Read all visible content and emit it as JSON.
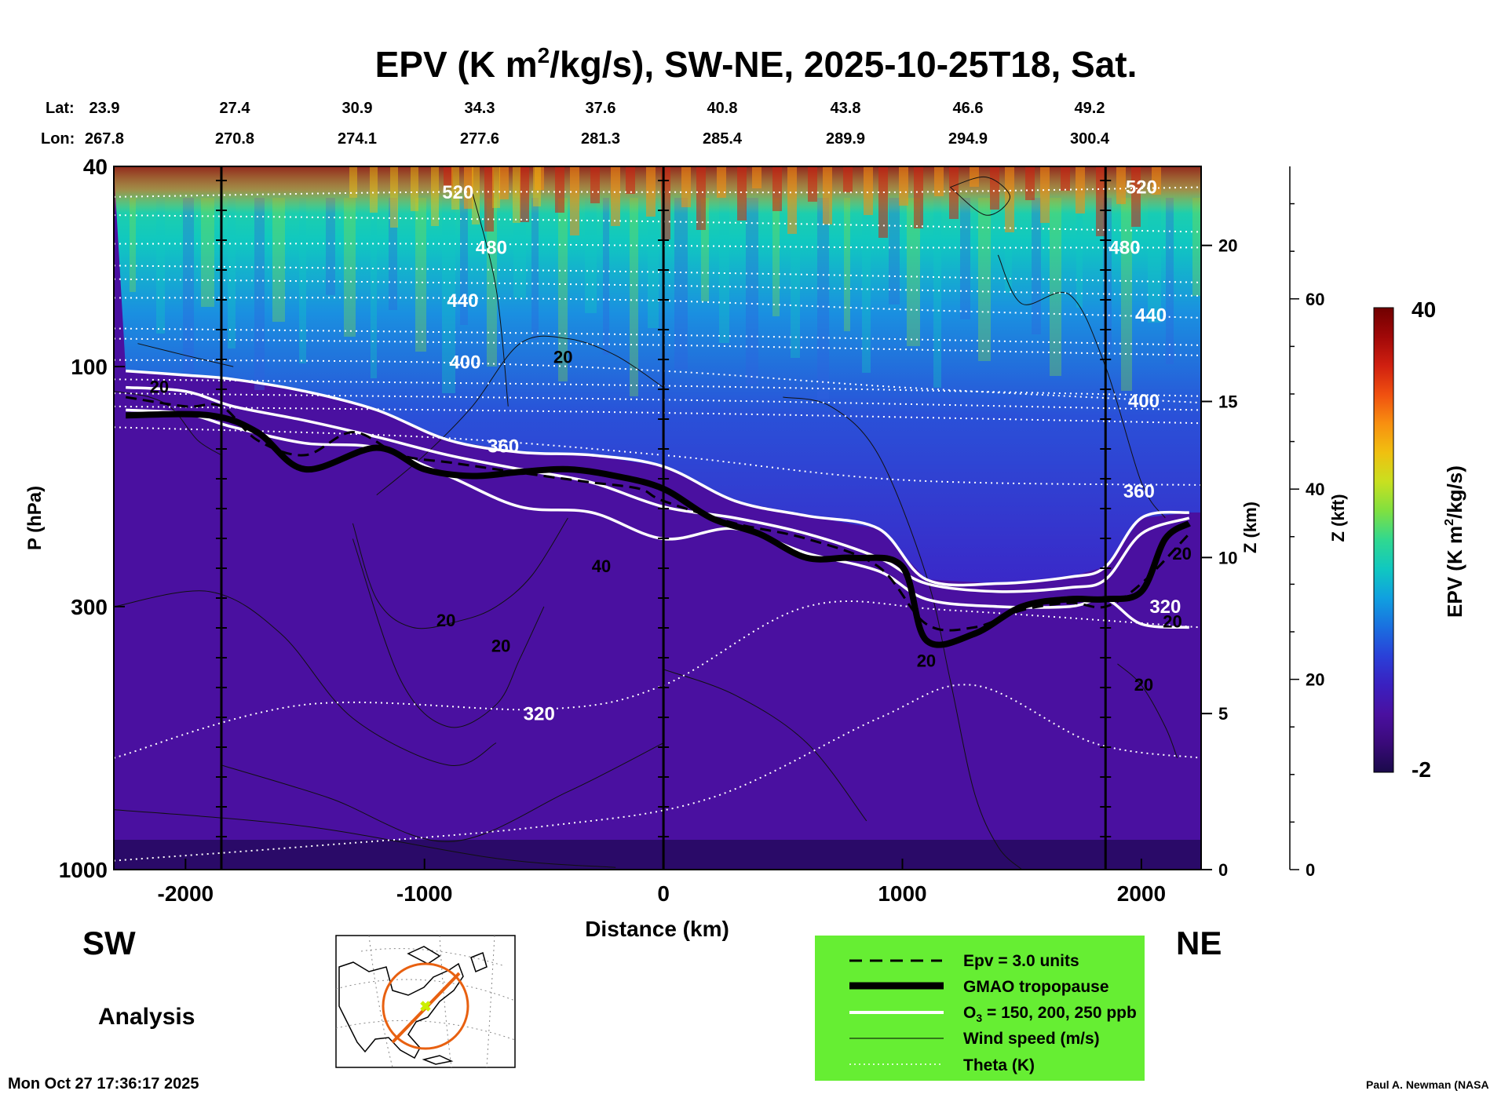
{
  "title": {
    "prefix": "EPV (K m",
    "sup": "2",
    "suffix": "/kg/s), SW-NE, 2025-10-25T18, Sat."
  },
  "lat_row": {
    "label": "Lat:",
    "values": [
      "23.9",
      "27.4",
      "30.9",
      "34.3",
      "37.6",
      "40.8",
      "43.8",
      "46.6",
      "49.2"
    ]
  },
  "lon_row": {
    "label": "Lon:",
    "values": [
      "267.8",
      "270.8",
      "274.1",
      "277.6",
      "281.3",
      "285.4",
      "289.9",
      "294.9",
      "300.4"
    ]
  },
  "sw_label": "SW",
  "ne_label": "NE",
  "analysis_label": "Analysis",
  "timestamp": "Mon Oct 27 17:36:17 2025",
  "credit": "Paul A. Newman (NASA",
  "legend": {
    "bg_color": "#66ee33",
    "items": [
      {
        "style": "dashed",
        "label": "Epv = 3.0 units"
      },
      {
        "style": "thick",
        "label": "GMAO tropopause"
      },
      {
        "style": "white",
        "label_prefix": "O",
        "label_sub": "3",
        "label_suffix": " = 150, 200, 250 ppb"
      },
      {
        "style": "thin",
        "label": "Wind speed (m/s)"
      },
      {
        "style": "dotted",
        "label": "Theta (K)"
      }
    ]
  },
  "colorbar": {
    "max_label": "40",
    "min_label": "-2",
    "title_prefix": "EPV (K m",
    "title_sup": "2",
    "title_suffix": "/kg/s)",
    "colors": [
      "#1a0a4a",
      "#3a0a7a",
      "#4a10a0",
      "#3a20c0",
      "#2a40d8",
      "#1a70e0",
      "#10a0e0",
      "#10c8c0",
      "#30d890",
      "#80e040",
      "#c8e020",
      "#f0c010",
      "#f89010",
      "#f05010",
      "#d02010",
      "#a00808",
      "#700000"
    ]
  },
  "chart_data": {
    "type": "heatmap",
    "xlabel": "Distance (km)",
    "ylabel": "P (hPa)",
    "xlim": [
      -2300,
      2250
    ],
    "ylim": [
      1000,
      40
    ],
    "y_scale": "log",
    "x_ticks": [
      -2000,
      -1000,
      0,
      1000,
      2000
    ],
    "y_ticks": [
      40,
      100,
      300,
      1000
    ],
    "z_axis": {
      "label": "Z (km)",
      "ticks": [
        0,
        5,
        10,
        15,
        20
      ]
    },
    "kft_axis": {
      "label": "Z (kft)",
      "ticks": [
        0,
        20,
        40,
        60
      ]
    },
    "vertical_markers": [
      -1850,
      0,
      1850
    ],
    "colorbar_range": [
      -2,
      40
    ],
    "theta_levels": [
      {
        "label": "520",
        "at": [
          {
            "x": -860,
            "p": 45
          },
          {
            "x": 2000,
            "p": 44
          }
        ]
      },
      {
        "label": "480",
        "at": [
          {
            "x": -720,
            "p": 58
          },
          {
            "x": 1930,
            "p": 58
          }
        ]
      },
      {
        "label": "440",
        "at": [
          {
            "x": -840,
            "p": 74
          },
          {
            "x": 2040,
            "p": 79
          }
        ]
      },
      {
        "label": "400",
        "at": [
          {
            "x": -830,
            "p": 98
          },
          {
            "x": 2010,
            "p": 117
          }
        ]
      },
      {
        "label": "360",
        "at": [
          {
            "x": -670,
            "p": 144
          },
          {
            "x": 1990,
            "p": 177
          }
        ]
      },
      {
        "label": "320",
        "at": [
          {
            "x": -520,
            "p": 490
          },
          {
            "x": 2100,
            "p": 300
          }
        ]
      }
    ],
    "wind_labels": [
      {
        "label": "20",
        "x": -2110,
        "p": 110
      },
      {
        "label": "20",
        "x": -420,
        "p": 96
      },
      {
        "label": "20",
        "x": -910,
        "p": 320
      },
      {
        "label": "20",
        "x": -680,
        "p": 360
      },
      {
        "label": "40",
        "x": -260,
        "p": 250
      },
      {
        "label": "20",
        "x": 1100,
        "p": 385
      },
      {
        "label": "20",
        "x": 2010,
        "p": 430
      },
      {
        "label": "20",
        "x": 2130,
        "p": 322
      },
      {
        "label": "20",
        "x": 2170,
        "p": 236
      }
    ],
    "tropopause": {
      "x": [
        -2250,
        -1900,
        -1700,
        -1500,
        -1200,
        -1000,
        -800,
        -600,
        -400,
        -200,
        0,
        200,
        400,
        600,
        800,
        1000,
        1100,
        1300,
        1500,
        1700,
        1850,
        2000,
        2100,
        2200
      ],
      "p": [
        125,
        125,
        135,
        160,
        145,
        160,
        165,
        162,
        160,
        165,
        175,
        200,
        215,
        240,
        240,
        250,
        350,
        340,
        300,
        290,
        290,
        280,
        220,
        205
      ]
    },
    "epv3": {
      "x": [
        -2250,
        -2000,
        -1850,
        -1700,
        -1500,
        -1300,
        -1100,
        -900,
        -700,
        -500,
        -300,
        -100,
        0,
        300,
        600,
        900,
        1100,
        1300,
        1500,
        1700,
        1850,
        2000,
        2200
      ],
      "p": [
        115,
        120,
        120,
        140,
        150,
        135,
        150,
        155,
        160,
        165,
        170,
        175,
        185,
        205,
        220,
        250,
        325,
        330,
        305,
        295,
        300,
        270,
        215
      ]
    },
    "ozone": [
      {
        "label": "150",
        "x": [
          -2250,
          -2000,
          -1800,
          -1500,
          -1200,
          -900,
          -600,
          -300,
          0,
          300,
          600,
          900,
          1100,
          1400,
          1700,
          1850,
          2000,
          2200
        ],
        "p": [
          102,
          104,
          106,
          112,
          122,
          140,
          148,
          150,
          158,
          185,
          198,
          210,
          265,
          270,
          262,
          250,
          200,
          195
        ]
      },
      {
        "label": "200",
        "x": [
          -2250,
          -2000,
          -1800,
          -1500,
          -1200,
          -900,
          -600,
          -300,
          0,
          300,
          600,
          900,
          1100,
          1400,
          1700,
          1850,
          2000,
          2200
        ],
        "p": [
          110,
          112,
          120,
          128,
          138,
          150,
          160,
          170,
          190,
          200,
          215,
          240,
          270,
          280,
          275,
          265,
          215,
          200
        ]
      },
      {
        "label": "250",
        "x": [
          -2250,
          -2000,
          -1800,
          -1500,
          -1200,
          -900,
          -600,
          -300,
          0,
          300,
          600,
          900,
          1100,
          1400,
          1700,
          1850,
          2000,
          2200
        ],
        "p": [
          122,
          124,
          132,
          142,
          145,
          165,
          190,
          195,
          220,
          210,
          235,
          255,
          290,
          300,
          300,
          290,
          325,
          330
        ]
      }
    ]
  }
}
